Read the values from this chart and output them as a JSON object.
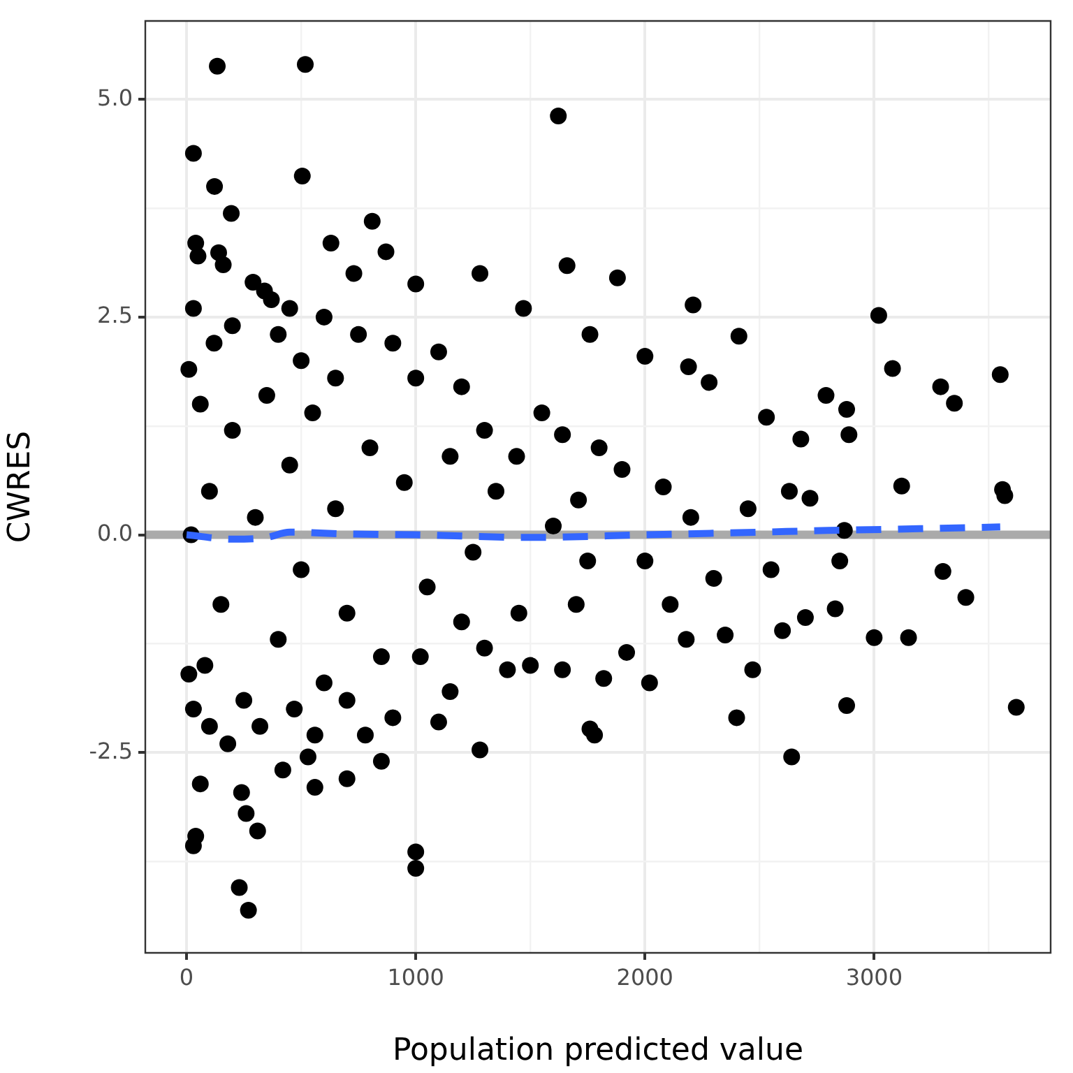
{
  "chart_data": {
    "type": "scatter",
    "xlabel": "Population predicted value",
    "ylabel": "CWRES",
    "xlim": [
      -180,
      3770
    ],
    "ylim": [
      -4.8,
      5.9
    ],
    "xticks": [
      0,
      {
        "value": 500,
        "label": null
      },
      1000,
      {
        "value": 1500,
        "label": null
      },
      2000,
      {
        "value": 2500,
        "label": null
      },
      3000,
      {
        "value": 3500,
        "label": null
      }
    ],
    "yticks": [
      {
        "value": -3.75,
        "label": null
      },
      {
        "value": -2.5,
        "label": "-2.5"
      },
      {
        "value": -1.25,
        "label": null
      },
      {
        "value": 0,
        "label": "0.0"
      },
      {
        "value": 1.25,
        "label": null
      },
      {
        "value": 2.5,
        "label": "2.5"
      },
      {
        "value": 3.75,
        "label": null
      },
      {
        "value": 5,
        "label": "5.0"
      }
    ],
    "grid": true,
    "legend": false,
    "marker": "circle",
    "ref_lines": [
      {
        "axis": "y",
        "value": 0,
        "label": null,
        "color": "#aaaaaa"
      }
    ],
    "series": [
      {
        "color": "#000000",
        "x": [
          134,
          518,
          1622,
          30,
          122,
          505,
          195,
          1660,
          1880,
          3020,
          2210,
          3080,
          3290,
          3350,
          3550,
          3560,
          3570,
          3620,
          3400,
          3300,
          3150,
          3000,
          2880,
          3120,
          2640,
          2400,
          1760,
          1780,
          1000,
          1000,
          230,
          270,
          30,
          40,
          60,
          260,
          310,
          240,
          420,
          530,
          560,
          700,
          780,
          850,
          1280,
          30,
          40,
          50,
          140,
          160,
          290,
          340,
          370,
          630,
          730,
          810,
          870,
          1000,
          1280,
          1470,
          1760,
          2000,
          2410,
          2190,
          2280,
          2530,
          2790,
          2880,
          2890,
          2680,
          2630,
          2720,
          2870,
          2850,
          2830,
          2700,
          2600,
          2470,
          2350,
          2180,
          2020,
          2110,
          1920,
          1820,
          1640,
          1700,
          1500,
          1400,
          1300,
          1150,
          1100,
          900,
          1550,
          1640,
          1800,
          1900,
          2080,
          1710,
          1440,
          1200,
          1100,
          1000,
          900,
          750,
          600,
          450,
          500,
          650,
          20,
          60,
          80,
          100,
          150,
          200,
          250,
          300,
          350,
          400,
          450,
          500,
          550,
          600,
          650,
          700,
          800,
          850,
          950,
          1050,
          1150,
          1250,
          1350,
          1450,
          1600,
          1750,
          2000,
          2200,
          2300,
          2450,
          2550,
          10,
          10,
          30,
          120,
          100,
          180,
          200,
          320,
          400,
          470,
          700,
          560,
          1020,
          1200,
          1300
        ],
        "values": [
          5.38,
          5.4,
          4.81,
          4.38,
          4.0,
          4.12,
          3.69,
          3.09,
          2.95,
          2.52,
          2.64,
          1.91,
          1.7,
          1.51,
          1.84,
          0.52,
          0.45,
          -1.98,
          -0.72,
          -0.42,
          -1.18,
          -1.18,
          -1.96,
          0.56,
          -2.55,
          -2.1,
          -2.23,
          -2.3,
          -3.64,
          -3.83,
          -4.05,
          -4.31,
          -3.57,
          -3.46,
          -2.86,
          -3.2,
          -3.4,
          -2.96,
          -2.7,
          -2.55,
          -2.9,
          -2.8,
          -2.3,
          -2.6,
          -2.47,
          2.6,
          3.35,
          3.2,
          3.24,
          3.1,
          2.9,
          2.8,
          2.7,
          3.35,
          3.0,
          3.6,
          3.25,
          2.88,
          3.0,
          2.6,
          2.3,
          2.05,
          2.28,
          1.93,
          1.75,
          1.35,
          1.6,
          1.44,
          1.15,
          1.1,
          0.5,
          0.42,
          0.05,
          -0.3,
          -0.85,
          -0.95,
          -1.1,
          -1.55,
          -1.15,
          -1.2,
          -1.7,
          -0.8,
          -1.35,
          -1.65,
          -1.55,
          -0.8,
          -1.5,
          -1.55,
          -1.3,
          -1.8,
          -2.15,
          -2.1,
          1.4,
          1.15,
          1.0,
          0.75,
          0.55,
          0.4,
          0.9,
          1.7,
          2.1,
          1.8,
          2.2,
          2.3,
          2.5,
          2.6,
          2.0,
          1.8,
          0,
          1.5,
          -1.5,
          0.5,
          -0.8,
          1.2,
          -1.9,
          0.2,
          1.6,
          -1.2,
          0.8,
          -0.4,
          1.4,
          -1.7,
          0.3,
          -0.9,
          1.0,
          -1.4,
          0.6,
          -0.6,
          0.9,
          -0.2,
          0.5,
          -0.9,
          0.1,
          -0.3,
          -0.3,
          0.2,
          -0.5,
          0.3,
          -0.4,
          1.9,
          -1.6,
          -2.0,
          2.2,
          -2.2,
          -2.4,
          2.4,
          -2.2,
          2.3,
          -2.0,
          -1.9,
          -2.3,
          -1.4,
          -1.0,
          1.2
        ]
      },
      {
        "type": "line",
        "color": "#3366ff",
        "line_style": "dashed",
        "marker": "none",
        "x": [
          0,
          200,
          350,
          450,
          700,
          1000,
          1500,
          2000,
          2500,
          2800,
          3200,
          3550
        ],
        "values": [
          0,
          -0.05,
          -0.03,
          0.03,
          0.01,
          0,
          -0.03,
          0,
          0.03,
          0.05,
          0.07,
          0.09
        ]
      }
    ]
  }
}
